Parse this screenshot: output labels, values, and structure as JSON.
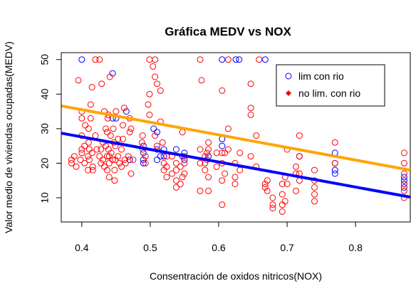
{
  "chart_data": {
    "type": "scatter",
    "title": "Gráfica MEDV vs NOX",
    "xlabel": "Consentración de oxidos nitricos(NOX)",
    "ylabel": "Valor medio de viviendas ocupadas(MEDV)",
    "xlim": [
      0.37,
      0.88
    ],
    "ylim": [
      3,
      52
    ],
    "xticks": [
      "0.4",
      "0.5",
      "0.6",
      "0.7",
      "0.8"
    ],
    "yticks": [
      "10",
      "20",
      "30",
      "40",
      "50"
    ],
    "grid": false,
    "legend_position": "top-right",
    "colors": {
      "rio": "#0000ff",
      "no_rio": "#ff0000",
      "line_rio": "#0000ff",
      "line_no_rio": "#ffa500"
    },
    "legend": [
      {
        "label": "lim con rio",
        "marker": "open-circle",
        "color": "#0000ff"
      },
      {
        "label": "no lim. con rio",
        "marker": "filled-diamond",
        "color": "#ff0000"
      }
    ],
    "lines": [
      {
        "color": "#0000ff",
        "x": [
          0.37,
          0.88
        ],
        "y": [
          28.7,
          10.2
        ]
      },
      {
        "color": "#ffa500",
        "x": [
          0.37,
          0.88
        ],
        "y": [
          36.6,
          18.0
        ]
      }
    ],
    "series": [
      {
        "color": "#0000ff",
        "points": [
          [
            0.4,
            50
          ],
          [
            0.445,
            46
          ],
          [
            0.445,
            33
          ],
          [
            0.45,
            33
          ],
          [
            0.465,
            35
          ],
          [
            0.47,
            21
          ],
          [
            0.49,
            25
          ],
          [
            0.49,
            23
          ],
          [
            0.49,
            21
          ],
          [
            0.49,
            20
          ],
          [
            0.505,
            30
          ],
          [
            0.51,
            29
          ],
          [
            0.51,
            24
          ],
          [
            0.51,
            21
          ],
          [
            0.515,
            22
          ],
          [
            0.52,
            24
          ],
          [
            0.52,
            22
          ],
          [
            0.538,
            24
          ],
          [
            0.547,
            22
          ],
          [
            0.55,
            23
          ],
          [
            0.55,
            21
          ],
          [
            0.585,
            22
          ],
          [
            0.605,
            50
          ],
          [
            0.605,
            27
          ],
          [
            0.605,
            25
          ],
          [
            0.625,
            50
          ],
          [
            0.63,
            50
          ],
          [
            0.668,
            50
          ],
          [
            0.718,
            22
          ],
          [
            0.77,
            23
          ],
          [
            0.77,
            20
          ],
          [
            0.77,
            18
          ],
          [
            0.77,
            17
          ],
          [
            0.871,
            16
          ],
          [
            0.871,
            15
          ],
          [
            0.871,
            14
          ],
          [
            0.871,
            13
          ]
        ]
      },
      {
        "color": "#ff0000",
        "points": [
          [
            0.385,
            21
          ],
          [
            0.385,
            20
          ],
          [
            0.389,
            22
          ],
          [
            0.392,
            19
          ],
          [
            0.395,
            44
          ],
          [
            0.398,
            21
          ],
          [
            0.4,
            23
          ],
          [
            0.4,
            35
          ],
          [
            0.4,
            28
          ],
          [
            0.4,
            24
          ],
          [
            0.4,
            33
          ],
          [
            0.404,
            25
          ],
          [
            0.404,
            20
          ],
          [
            0.405,
            31
          ],
          [
            0.409,
            22
          ],
          [
            0.409,
            18
          ],
          [
            0.41,
            30
          ],
          [
            0.41,
            26
          ],
          [
            0.411,
            21
          ],
          [
            0.411,
            24
          ],
          [
            0.413,
            37
          ],
          [
            0.413,
            33
          ],
          [
            0.415,
            42
          ],
          [
            0.415,
            23
          ],
          [
            0.416,
            19
          ],
          [
            0.416,
            18
          ],
          [
            0.42,
            28
          ],
          [
            0.42,
            50
          ],
          [
            0.422,
            24
          ],
          [
            0.426,
            22
          ],
          [
            0.426,
            50
          ],
          [
            0.428,
            20
          ],
          [
            0.428,
            24
          ],
          [
            0.429,
            43
          ],
          [
            0.431,
            21
          ],
          [
            0.431,
            26
          ],
          [
            0.433,
            19
          ],
          [
            0.433,
            35
          ],
          [
            0.435,
            25
          ],
          [
            0.435,
            30
          ],
          [
            0.437,
            29
          ],
          [
            0.437,
            22
          ],
          [
            0.437,
            18
          ],
          [
            0.438,
            33
          ],
          [
            0.439,
            34
          ],
          [
            0.439,
            24
          ],
          [
            0.44,
            22
          ],
          [
            0.44,
            20
          ],
          [
            0.44,
            16
          ],
          [
            0.441,
            45
          ],
          [
            0.442,
            28
          ],
          [
            0.443,
            23
          ],
          [
            0.445,
            21
          ],
          [
            0.446,
            30
          ],
          [
            0.447,
            26
          ],
          [
            0.448,
            18
          ],
          [
            0.448,
            15
          ],
          [
            0.449,
            21
          ],
          [
            0.449,
            25
          ],
          [
            0.45,
            35
          ],
          [
            0.453,
            27
          ],
          [
            0.453,
            22
          ],
          [
            0.455,
            20
          ],
          [
            0.458,
            24
          ],
          [
            0.458,
            19
          ],
          [
            0.46,
            31
          ],
          [
            0.46,
            27
          ],
          [
            0.462,
            36
          ],
          [
            0.463,
            21
          ],
          [
            0.464,
            20
          ],
          [
            0.468,
            22
          ],
          [
            0.47,
            33
          ],
          [
            0.47,
            29
          ],
          [
            0.472,
            30
          ],
          [
            0.472,
            17
          ],
          [
            0.475,
            21
          ],
          [
            0.488,
            26
          ],
          [
            0.489,
            28
          ],
          [
            0.489,
            24
          ],
          [
            0.493,
            22
          ],
          [
            0.493,
            20
          ],
          [
            0.497,
            37
          ],
          [
            0.499,
            50
          ],
          [
            0.499,
            40
          ],
          [
            0.499,
            34
          ],
          [
            0.504,
            48
          ],
          [
            0.507,
            50
          ],
          [
            0.507,
            45
          ],
          [
            0.507,
            28
          ],
          [
            0.51,
            43
          ],
          [
            0.51,
            25
          ],
          [
            0.515,
            41
          ],
          [
            0.515,
            32
          ],
          [
            0.518,
            26
          ],
          [
            0.52,
            20
          ],
          [
            0.52,
            18
          ],
          [
            0.524,
            22
          ],
          [
            0.524,
            19
          ],
          [
            0.524,
            16
          ],
          [
            0.532,
            22
          ],
          [
            0.532,
            17
          ],
          [
            0.538,
            20
          ],
          [
            0.538,
            18
          ],
          [
            0.538,
            15
          ],
          [
            0.538,
            13
          ],
          [
            0.544,
            19
          ],
          [
            0.544,
            14
          ],
          [
            0.547,
            29
          ],
          [
            0.547,
            16
          ],
          [
            0.55,
            22
          ],
          [
            0.55,
            20
          ],
          [
            0.55,
            17
          ],
          [
            0.573,
            50
          ],
          [
            0.573,
            24
          ],
          [
            0.573,
            20
          ],
          [
            0.573,
            12
          ],
          [
            0.575,
            44
          ],
          [
            0.58,
            22
          ],
          [
            0.58,
            20
          ],
          [
            0.58,
            18
          ],
          [
            0.583,
            21
          ],
          [
            0.583,
            23
          ],
          [
            0.585,
            26
          ],
          [
            0.585,
            16
          ],
          [
            0.585,
            12
          ],
          [
            0.585,
            24
          ],
          [
            0.597,
            23
          ],
          [
            0.597,
            19
          ],
          [
            0.605,
            41
          ],
          [
            0.605,
            23
          ],
          [
            0.605,
            20
          ],
          [
            0.605,
            15
          ],
          [
            0.605,
            8
          ],
          [
            0.609,
            17
          ],
          [
            0.609,
            23
          ],
          [
            0.614,
            50
          ],
          [
            0.614,
            30
          ],
          [
            0.614,
            24
          ],
          [
            0.624,
            20
          ],
          [
            0.624,
            16
          ],
          [
            0.624,
            14
          ],
          [
            0.631,
            23
          ],
          [
            0.631,
            18
          ],
          [
            0.647,
            43
          ],
          [
            0.647,
            36
          ],
          [
            0.647,
            34
          ],
          [
            0.647,
            22
          ],
          [
            0.655,
            28
          ],
          [
            0.655,
            19
          ],
          [
            0.659,
            50
          ],
          [
            0.668,
            14
          ],
          [
            0.668,
            13
          ],
          [
            0.671,
            15
          ],
          [
            0.671,
            12
          ],
          [
            0.679,
            10
          ],
          [
            0.679,
            8
          ],
          [
            0.679,
            7
          ],
          [
            0.693,
            14
          ],
          [
            0.693,
            11
          ],
          [
            0.693,
            8
          ],
          [
            0.693,
            6
          ],
          [
            0.697,
            16
          ],
          [
            0.697,
            9
          ],
          [
            0.7,
            24
          ],
          [
            0.7,
            14
          ],
          [
            0.713,
            19
          ],
          [
            0.713,
            17
          ],
          [
            0.713,
            12
          ],
          [
            0.718,
            28
          ],
          [
            0.718,
            22
          ],
          [
            0.718,
            17
          ],
          [
            0.718,
            15
          ],
          [
            0.74,
            18
          ],
          [
            0.74,
            15
          ],
          [
            0.74,
            13
          ],
          [
            0.74,
            11
          ],
          [
            0.74,
            9
          ],
          [
            0.77,
            26
          ],
          [
            0.77,
            20
          ],
          [
            0.871,
            23
          ],
          [
            0.871,
            20
          ],
          [
            0.871,
            17
          ],
          [
            0.871,
            14
          ],
          [
            0.871,
            12
          ],
          [
            0.871,
            10
          ]
        ]
      }
    ]
  }
}
